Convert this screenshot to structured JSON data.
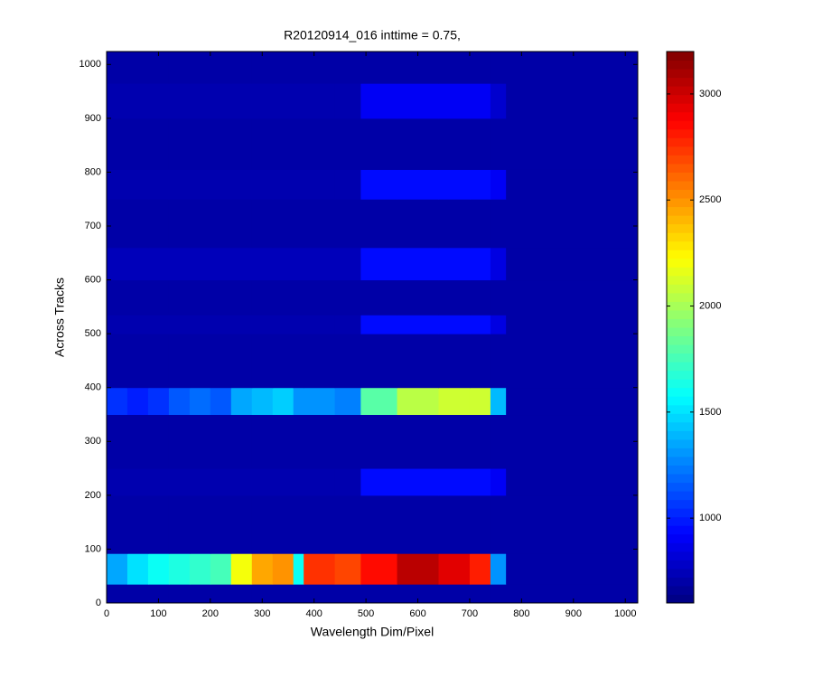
{
  "chart_data": {
    "type": "heatmap",
    "title": "R20120914_016 inttime = 0.75,",
    "x_label": "Wavelength Dim/Pixel",
    "y_label": "Across Tracks",
    "x_edges": [
      0,
      40,
      80,
      120,
      160,
      200,
      240,
      280,
      320,
      360,
      380,
      440,
      490,
      560,
      640,
      700,
      740,
      770,
      1024
    ],
    "y_edges": [
      0,
      35,
      92,
      200,
      250,
      350,
      400,
      500,
      535,
      600,
      660,
      750,
      805,
      900,
      965,
      1024
    ],
    "values": [
      [
        700,
        700,
        700,
        700,
        700,
        700,
        700,
        700,
        700,
        700,
        700,
        700,
        700,
        700,
        700,
        700,
        700,
        700
      ],
      [
        1350,
        1500,
        1600,
        1650,
        1700,
        1750,
        2200,
        2450,
        2500,
        1600,
        2750,
        2700,
        2850,
        3050,
        2950,
        2800,
        1300,
        700
      ],
      [
        700,
        700,
        700,
        700,
        700,
        700,
        700,
        700,
        700,
        700,
        700,
        700,
        700,
        700,
        700,
        700,
        700,
        700
      ],
      [
        720,
        720,
        720,
        720,
        720,
        720,
        720,
        720,
        720,
        720,
        720,
        720,
        950,
        950,
        950,
        950,
        900,
        700
      ],
      [
        700,
        700,
        700,
        700,
        700,
        700,
        700,
        700,
        700,
        700,
        700,
        700,
        700,
        700,
        700,
        700,
        700,
        700
      ],
      [
        1050,
        1000,
        1050,
        1150,
        1200,
        1150,
        1350,
        1400,
        1450,
        1300,
        1300,
        1250,
        1800,
        2050,
        2100,
        2100,
        1400,
        700
      ],
      [
        700,
        700,
        700,
        700,
        700,
        700,
        700,
        700,
        700,
        700,
        700,
        700,
        700,
        700,
        700,
        700,
        700,
        700
      ],
      [
        720,
        720,
        720,
        720,
        720,
        720,
        720,
        720,
        720,
        720,
        720,
        720,
        950,
        950,
        950,
        950,
        850,
        700
      ],
      [
        700,
        700,
        700,
        700,
        700,
        700,
        700,
        700,
        700,
        700,
        700,
        700,
        700,
        700,
        700,
        700,
        700,
        700
      ],
      [
        750,
        750,
        750,
        750,
        750,
        750,
        750,
        750,
        750,
        750,
        750,
        750,
        950,
        950,
        950,
        950,
        850,
        700
      ],
      [
        700,
        700,
        700,
        700,
        700,
        700,
        700,
        700,
        700,
        700,
        700,
        700,
        700,
        700,
        700,
        700,
        700,
        700
      ],
      [
        720,
        720,
        720,
        720,
        720,
        720,
        720,
        720,
        720,
        720,
        720,
        720,
        950,
        950,
        950,
        950,
        900,
        700
      ],
      [
        700,
        700,
        700,
        700,
        700,
        700,
        700,
        700,
        700,
        700,
        700,
        700,
        700,
        700,
        700,
        700,
        700,
        700
      ],
      [
        720,
        720,
        720,
        720,
        720,
        720,
        720,
        720,
        720,
        720,
        720,
        720,
        900,
        900,
        900,
        900,
        800,
        700
      ],
      [
        700,
        700,
        700,
        700,
        700,
        700,
        700,
        700,
        700,
        700,
        700,
        700,
        700,
        700,
        700,
        700,
        700,
        700
      ]
    ],
    "colormap": "jet",
    "xlim": [
      0,
      1024
    ],
    "ylim": [
      0,
      1024
    ],
    "xticks": [
      0,
      100,
      200,
      300,
      400,
      500,
      600,
      700,
      800,
      900,
      1000
    ],
    "yticks": [
      0,
      100,
      200,
      300,
      400,
      500,
      600,
      700,
      800,
      900,
      1000
    ],
    "clim": [
      600,
      3200
    ],
    "cticks": [
      1000,
      1500,
      2000,
      2500,
      3000
    ]
  }
}
